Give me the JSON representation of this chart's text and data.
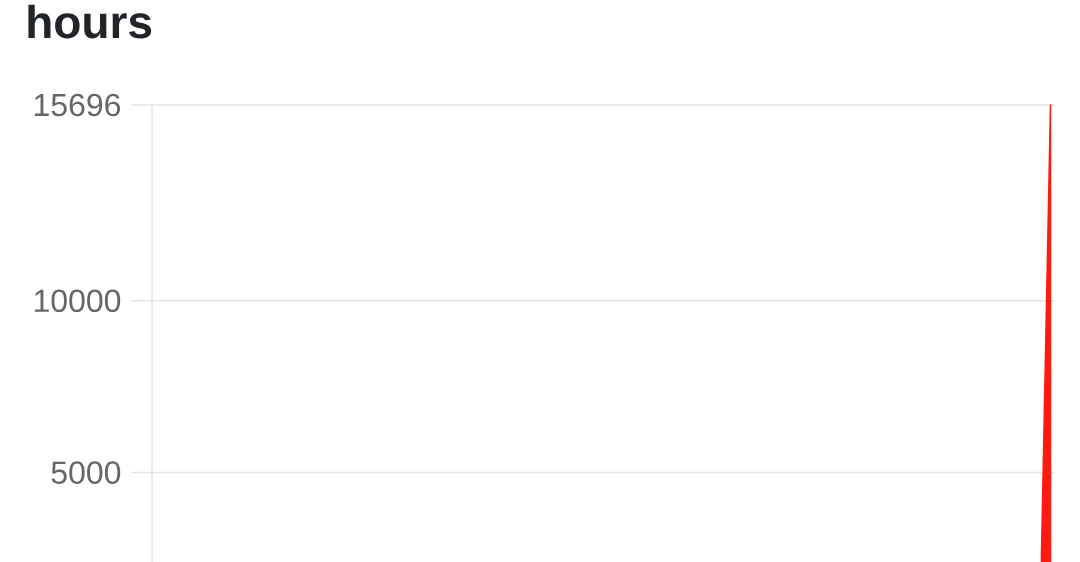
{
  "chart_data": {
    "type": "area",
    "title": "hours",
    "categories": [
      null,
      null,
      null,
      null,
      null,
      null,
      null,
      null,
      null,
      null,
      null,
      null,
      null,
      null,
      null,
      null,
      null,
      null,
      null,
      null,
      null,
      null,
      null,
      null,
      null,
      null,
      null,
      null,
      null,
      null,
      null,
      null,
      null,
      null,
      null,
      null,
      null,
      null,
      null,
      null,
      null,
      null,
      null,
      null,
      null,
      null,
      null,
      null,
      null,
      null,
      null,
      null,
      null,
      null,
      null,
      null,
      null,
      null,
      null,
      null,
      null,
      null,
      null,
      null,
      null,
      null,
      null,
      null,
      null,
      null,
      null,
      null,
      null,
      null,
      null,
      null,
      null,
      null,
      null,
      null,
      null,
      null,
      null,
      null,
      null,
      null,
      null,
      null,
      null,
      null,
      null,
      null,
      null,
      null,
      null,
      null,
      null,
      null,
      null,
      null
    ],
    "values": [
      null,
      null,
      null,
      null,
      null,
      null,
      null,
      null,
      null,
      null,
      null,
      null,
      null,
      null,
      null,
      null,
      null,
      null,
      null,
      null,
      null,
      null,
      null,
      null,
      null,
      null,
      null,
      null,
      null,
      null,
      null,
      null,
      null,
      null,
      null,
      null,
      null,
      null,
      null,
      null,
      null,
      null,
      null,
      null,
      null,
      null,
      null,
      null,
      null,
      null,
      null,
      null,
      null,
      null,
      null,
      null,
      null,
      null,
      null,
      null,
      null,
      null,
      null,
      null,
      null,
      null,
      null,
      null,
      null,
      null,
      null,
      null,
      null,
      null,
      null,
      null,
      null,
      null,
      null,
      null,
      null,
      null,
      null,
      null,
      null,
      null,
      null,
      null,
      null,
      null,
      null,
      null,
      null,
      null,
      null,
      null,
      null,
      null,
      2600,
      15696
    ],
    "color": "#ff1a10",
    "ylim": [
      2400,
      15696
    ],
    "yticks": [
      5000,
      10000,
      15696
    ],
    "grid": "y",
    "tick_labels": "y"
  }
}
